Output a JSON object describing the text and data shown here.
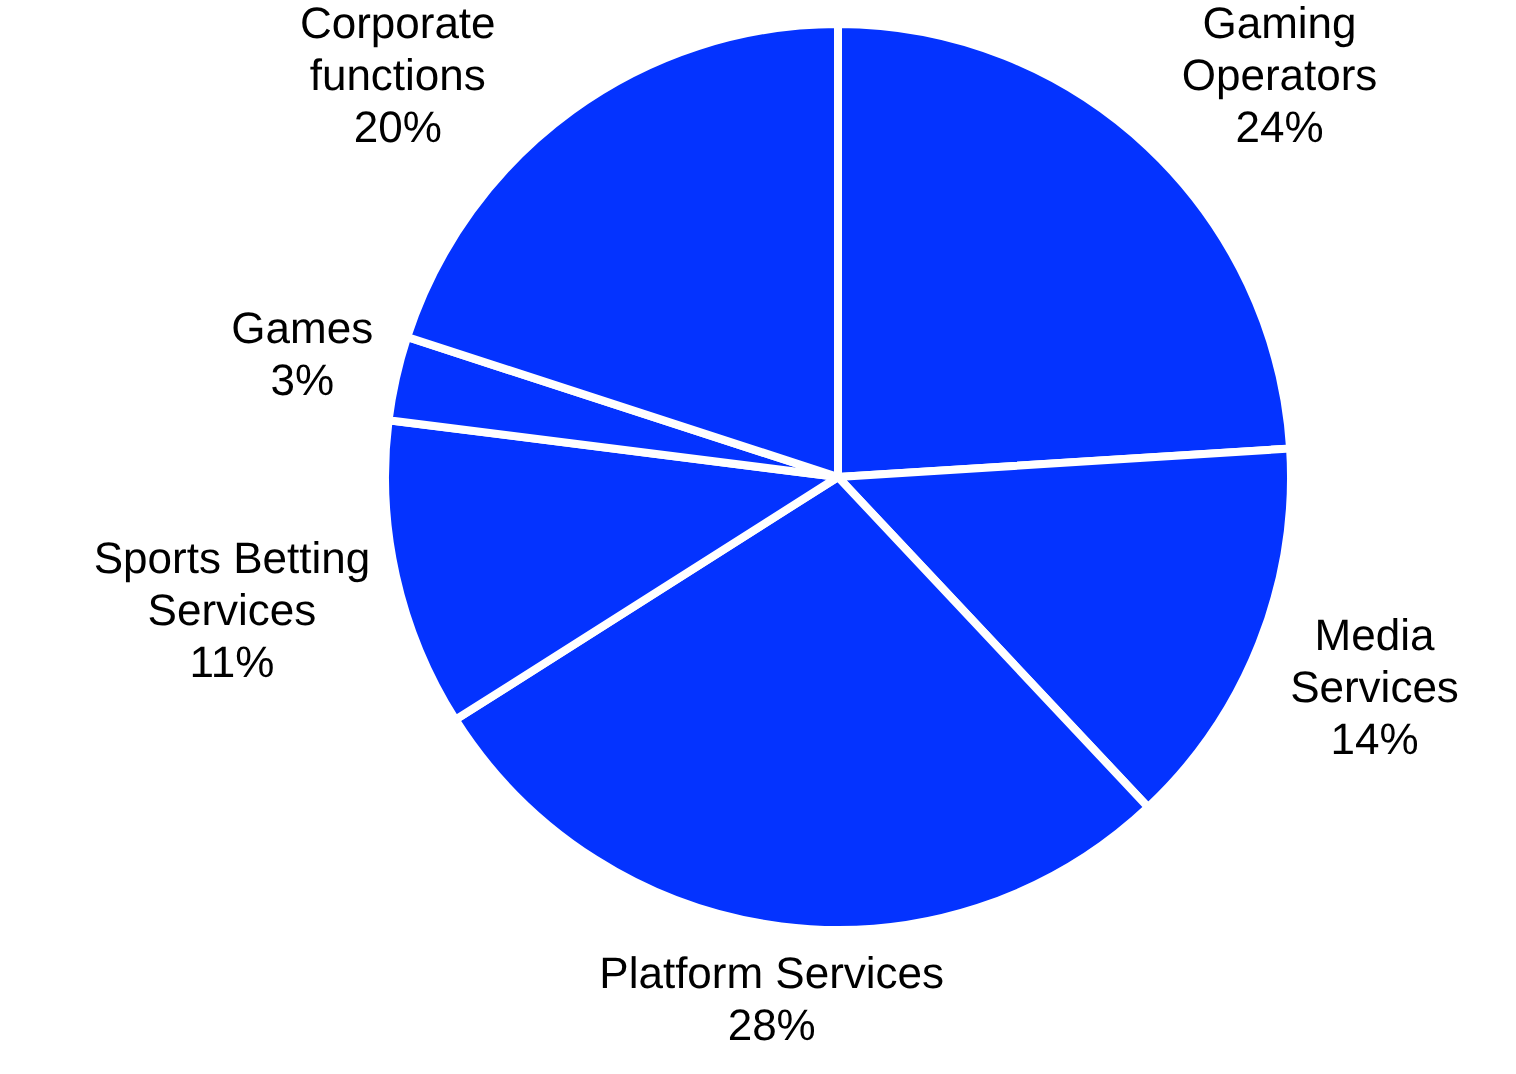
{
  "chart_data": {
    "type": "pie",
    "categories": [
      "Gaming Operators",
      "Media Services",
      "Platform Services",
      "Sports Betting Services",
      "Games",
      "Corporate functions"
    ],
    "values": [
      24,
      14,
      28,
      11,
      3,
      20
    ],
    "value_labels": [
      "24%",
      "14%",
      "28%",
      "11%",
      "3%",
      "20%"
    ],
    "colors": [
      "#0433ff",
      "#0433ff",
      "#0433ff",
      "#0433ff",
      "#0433ff",
      "#0433ff"
    ],
    "legend": false
  }
}
